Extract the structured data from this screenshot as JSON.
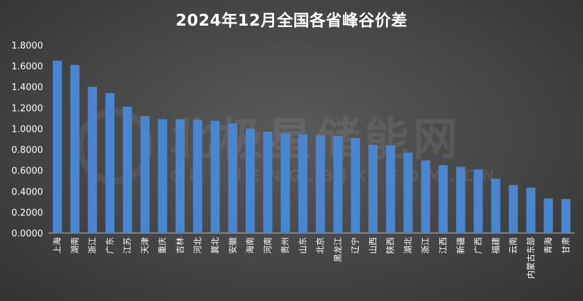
{
  "chart_data": {
    "type": "bar",
    "title": "2024年12月全国各省峰谷价差",
    "xlabel": "",
    "ylabel": "",
    "ylim": [
      0,
      1.8
    ],
    "yticks": [
      "0.0000",
      "0.2000",
      "0.4000",
      "0.6000",
      "0.8000",
      "1.0000",
      "1.2000",
      "1.4000",
      "1.6000",
      "1.8000"
    ],
    "grid": false,
    "legend": "none",
    "bar_color": "#4a86cf",
    "categories": [
      "上海",
      "湖南",
      "浙江",
      "广东",
      "江苏",
      "天津",
      "重庆",
      "吉林",
      "河北",
      "冀北",
      "安徽",
      "海南",
      "河南",
      "贵州",
      "山东",
      "北京",
      "黑龙江",
      "辽宁",
      "山西",
      "陕西",
      "湖北",
      "浙江",
      "江西",
      "新疆",
      "广西",
      "福建",
      "云南",
      "内蒙古东部",
      "青海",
      "甘肃"
    ],
    "values": [
      1.65,
      1.61,
      1.4,
      1.34,
      1.21,
      1.12,
      1.09,
      1.09,
      1.085,
      1.075,
      1.05,
      1.0,
      0.97,
      0.955,
      0.945,
      0.935,
      0.93,
      0.91,
      0.845,
      0.84,
      0.77,
      0.695,
      0.65,
      0.635,
      0.61,
      0.52,
      0.46,
      0.435,
      0.33,
      0.325
    ]
  },
  "watermark": {
    "text": "北极星储能网",
    "subtext": "CHUNENG.BJX.COM.CN"
  }
}
